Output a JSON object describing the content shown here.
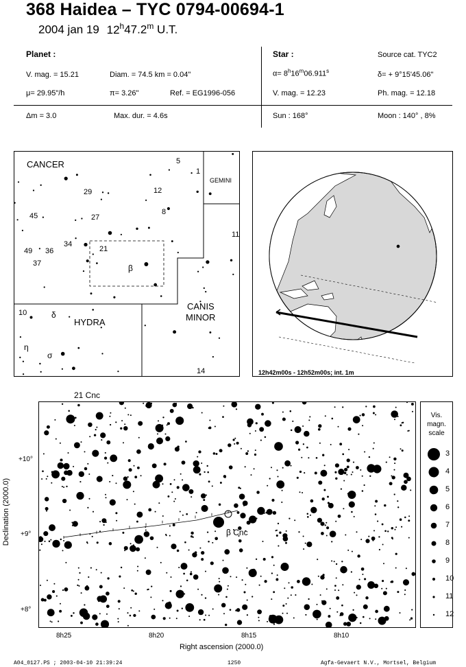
{
  "header": {
    "title": "368 Haidea  –  TYC 0794-00694-1",
    "date": "2004 jan 19",
    "time_h": "12",
    "time_m": "47.2",
    "time_ut": "U.T."
  },
  "planet": {
    "heading": "Planet :",
    "vmag": "V. mag. = 15.21",
    "diam": "Diam. = 74.5 km = 0.04\"",
    "mu": "μ=  29.95\"/h",
    "pi": "π=  3.26\"",
    "ref": "Ref. = EG1996-056",
    "dm": "Δm = 3.0",
    "maxdur": "Max. dur. = 4.6s"
  },
  "star": {
    "heading": "Star :",
    "source": "Source cat.  TYC2",
    "alpha_prefix": "α=  8",
    "alpha_h": "h",
    "alpha_16": "16",
    "alpha_m": "m",
    "alpha_rest": "06.911",
    "alpha_s": "s",
    "delta": "δ= + 9°15'45.06\"",
    "vmag": "V. mag. = 12.23",
    "phmag": "Ph. mag. = 12.18",
    "sun": "Sun : 168°",
    "moon": "Moon : 140° ,  8%"
  },
  "finder": {
    "constellations": [
      "CANCER",
      "GEMINI",
      "HYDRA",
      "CANIS",
      "MINOR"
    ],
    "star_labels": [
      "5",
      "1",
      "29",
      "12",
      "8",
      "27",
      "45",
      "34",
      "21",
      "49",
      "36",
      "37",
      "β",
      "11",
      "10",
      "δ",
      "η",
      "σ",
      "14"
    ]
  },
  "globe": {
    "caption": "12h42m00s - 12h52m00s; int.  1m"
  },
  "starchart": {
    "top_label": "21 Cnc",
    "target_label": "β Cnc",
    "y_axis_label": "Declination (2000.0)",
    "x_axis_label": "Right ascension (2000.0)",
    "x_ticks": [
      "8h25",
      "8h20",
      "8h15",
      "8h10"
    ],
    "y_ticks": [
      "+10°",
      "+9°",
      "+8°"
    ]
  },
  "mag_scale": {
    "title_lines": [
      "Vis.",
      "magn.",
      "scale"
    ],
    "levels": [
      "3",
      "4",
      "5",
      "6",
      "7",
      "8",
      "9",
      "10",
      "11",
      "12"
    ]
  },
  "footer": {
    "left": "A04_0127.PS ; 2003-04-10 21:39:24",
    "center": "1250",
    "right": "Agfa-Gevaert N.V., Mortsel, Belgium"
  }
}
